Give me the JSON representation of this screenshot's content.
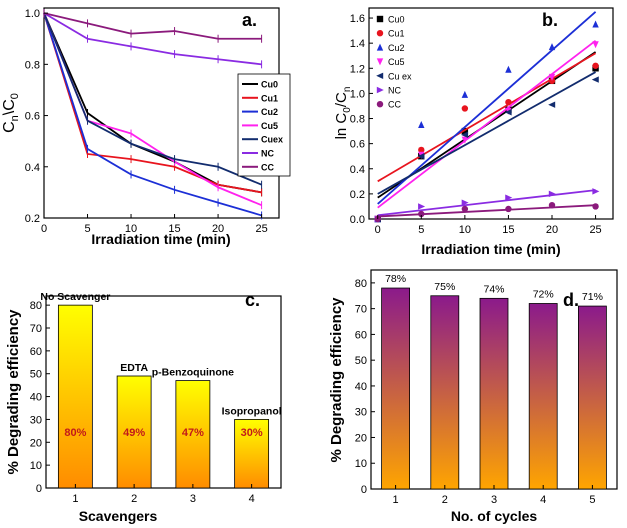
{
  "chart_data": [
    {
      "panel": "a.",
      "type": "line",
      "xlabel": "Irradiation time (min)",
      "ylabel_main": "C",
      "ylabel_sub1": "n",
      "ylabel_mid": "\\C",
      "ylabel_sub2": "0",
      "x_ticks": [
        "0",
        "5",
        "10",
        "15",
        "20",
        "25"
      ],
      "y_ticks": [
        "0.2",
        "0.4",
        "0.6",
        "0.8",
        "1.0"
      ],
      "xlim": [
        0,
        27
      ],
      "ylim": [
        0.2,
        1.02
      ],
      "legend_position": "right-middle",
      "x": [
        0,
        5,
        10,
        15,
        20,
        25
      ],
      "series": [
        {
          "name": "Cu0",
          "color": "#000000",
          "values": [
            1.0,
            0.61,
            0.49,
            0.42,
            0.33,
            0.3
          ]
        },
        {
          "name": "Cu1",
          "color": "#e8141e",
          "values": [
            1.0,
            0.45,
            0.43,
            0.4,
            0.33,
            0.3
          ]
        },
        {
          "name": "Cu2",
          "color": "#1c2fd6",
          "values": [
            1.0,
            0.47,
            0.37,
            0.31,
            0.26,
            0.21
          ]
        },
        {
          "name": "Cu5",
          "color": "#ff22ee",
          "values": [
            1.0,
            0.58,
            0.53,
            0.42,
            0.32,
            0.25
          ]
        },
        {
          "name": "Cuex",
          "color": "#122c6e",
          "values": [
            1.0,
            0.58,
            0.49,
            0.43,
            0.4,
            0.33
          ]
        },
        {
          "name": "NC",
          "color": "#8a2be2",
          "values": [
            1.0,
            0.9,
            0.87,
            0.84,
            0.82,
            0.8
          ]
        },
        {
          "name": "CC",
          "color": "#8b1a7c",
          "values": [
            1.0,
            0.96,
            0.92,
            0.93,
            0.9,
            0.9
          ]
        }
      ]
    },
    {
      "panel": "b.",
      "type": "scatter",
      "xlabel": "Irradiation time (min)",
      "ylabel_main": "ln C",
      "ylabel_sub1": "0",
      "ylabel_mid": "/C",
      "ylabel_sub2": "n",
      "x_ticks": [
        "0",
        "5",
        "10",
        "15",
        "20",
        "25"
      ],
      "y_ticks": [
        "0.0",
        "0.2",
        "0.4",
        "0.6",
        "0.8",
        "1.0",
        "1.2",
        "1.4",
        "1.6"
      ],
      "xlim": [
        -1,
        27
      ],
      "ylim": [
        0,
        1.68
      ],
      "legend_position": "top-left",
      "x": [
        0,
        5,
        10,
        15,
        20,
        25
      ],
      "series": [
        {
          "name": "Cu0",
          "color": "#000000",
          "marker": "square",
          "values": [
            0.0,
            0.5,
            0.7,
            0.87,
            1.1,
            1.2
          ],
          "fit": [
            0.17,
            1.33
          ]
        },
        {
          "name": "Cu1",
          "color": "#e8141e",
          "marker": "circle",
          "values": [
            0.0,
            0.55,
            0.88,
            0.93,
            1.1,
            1.22
          ],
          "fit": [
            0.3,
            1.32
          ]
        },
        {
          "name": "Cu2",
          "color": "#1c2fd6",
          "marker": "triangle-up",
          "values": [
            0.0,
            0.75,
            0.99,
            1.19,
            1.37,
            1.55
          ],
          "fit": [
            0.12,
            1.65
          ]
        },
        {
          "name": "Cu5",
          "color": "#ff22ee",
          "marker": "triangle-down",
          "values": [
            0.0,
            0.51,
            0.63,
            0.86,
            1.13,
            1.39
          ],
          "fit": [
            0.09,
            1.42
          ]
        },
        {
          "name": "Cu ex",
          "color": "#122c6e",
          "marker": "triangle-left",
          "values": [
            0.0,
            0.5,
            0.67,
            0.85,
            0.91,
            1.11
          ],
          "fit": [
            0.2,
            1.17
          ]
        },
        {
          "name": "NC",
          "color": "#8a2be2",
          "marker": "triangle-right",
          "values": [
            0.0,
            0.1,
            0.13,
            0.17,
            0.2,
            0.22
          ],
          "fit": [
            0.03,
            0.23
          ]
        },
        {
          "name": "CC",
          "color": "#8b1a7c",
          "marker": "circle",
          "values": [
            0.0,
            0.04,
            0.08,
            0.08,
            0.11,
            0.1
          ],
          "fit": [
            0.02,
            0.11
          ]
        }
      ]
    },
    {
      "panel": "c.",
      "type": "bar",
      "xlabel": "Scavengers",
      "ylabel": "% Degrading efficiency",
      "categories": [
        "1",
        "2",
        "3",
        "4"
      ],
      "values": [
        80,
        49,
        47,
        30
      ],
      "value_labels": [
        "80%",
        "49%",
        "47%",
        "30%"
      ],
      "bar_labels": [
        "No Scavenger",
        "EDTA",
        "p-Benzoquinone",
        "Isopropanol"
      ],
      "y_ticks": [
        "0",
        "10",
        "20",
        "30",
        "40",
        "50",
        "60",
        "70",
        "80"
      ],
      "ylim": [
        0,
        84
      ],
      "gradient_top": "#ffff00",
      "gradient_bottom": "#ff8c00"
    },
    {
      "panel": "d.",
      "type": "bar",
      "xlabel": "No. of cycles",
      "ylabel": "% Degrading efficiency",
      "categories": [
        "1",
        "2",
        "3",
        "4",
        "5"
      ],
      "values": [
        78,
        75,
        74,
        72,
        71
      ],
      "value_labels": [
        "78%",
        "75%",
        "74%",
        "72%",
        "71%"
      ],
      "y_ticks": [
        "0",
        "10",
        "20",
        "30",
        "40",
        "50",
        "60",
        "70",
        "80"
      ],
      "ylim": [
        0,
        85
      ],
      "gradient_top": "#8b1a8b",
      "gradient_bottom": "#ffa500"
    }
  ]
}
